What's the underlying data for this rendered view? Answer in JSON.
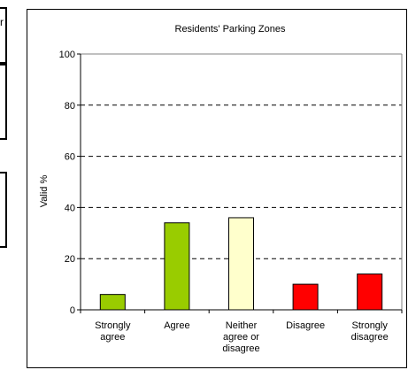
{
  "left_panel": {
    "glyph": "r"
  },
  "colors": {
    "green": "#99cc00",
    "yellow": "#ffffcc",
    "red": "#ff0000",
    "axis": "#000000",
    "grid": "#000000"
  },
  "chart_data": {
    "type": "bar",
    "title": "Residents' Parking Zones",
    "xlabel": "",
    "ylabel": "Valid %",
    "ylim": [
      0,
      100
    ],
    "yticks": [
      0,
      20,
      40,
      60,
      80,
      100
    ],
    "grid": "horizontal-dashed",
    "categories": [
      [
        "Strongly",
        "agree"
      ],
      [
        "Agree"
      ],
      [
        "Neither",
        "agree or",
        "disagree"
      ],
      [
        "Disagree"
      ],
      [
        "Strongly",
        "disagree"
      ]
    ],
    "values": [
      6,
      34,
      36,
      10,
      14
    ],
    "bar_colors": [
      "green",
      "green",
      "yellow",
      "red",
      "red"
    ]
  }
}
